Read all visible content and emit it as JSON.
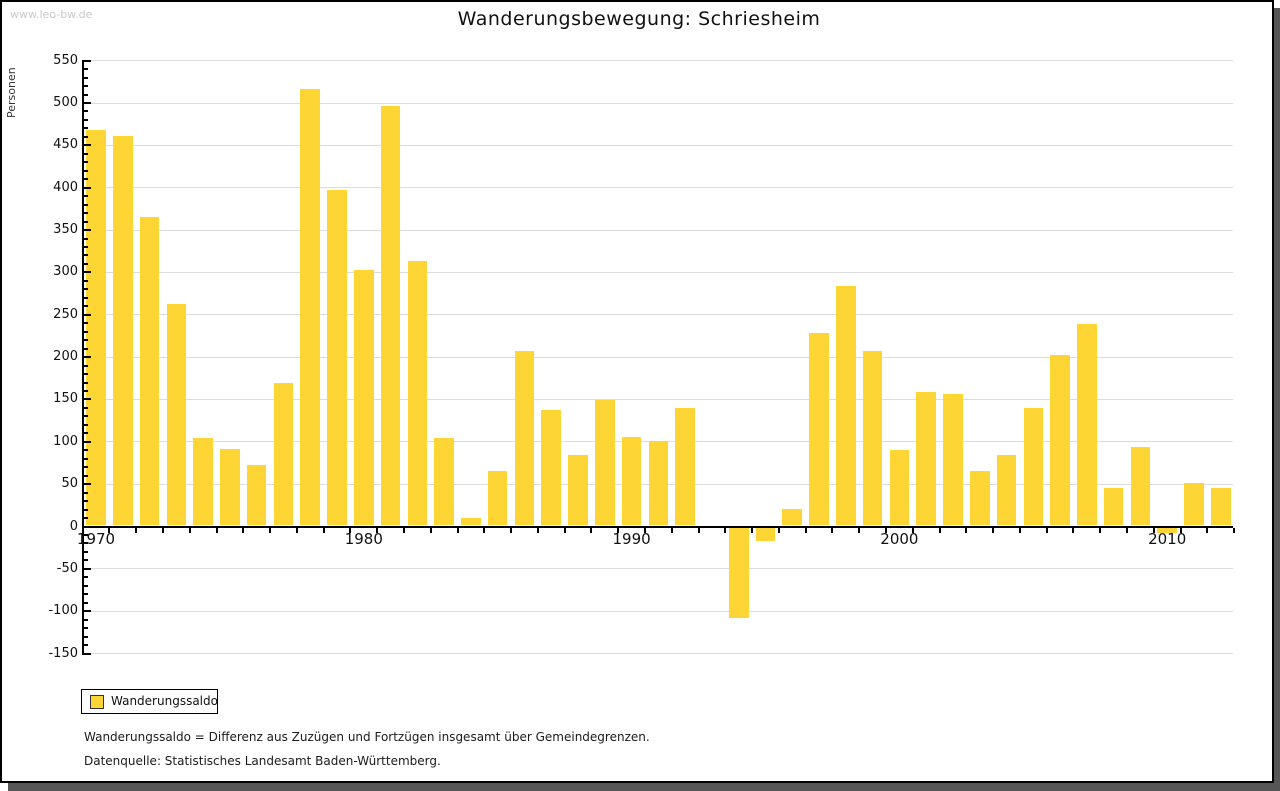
{
  "watermark": "www.leo-bw.de",
  "chart_data": {
    "type": "bar",
    "title": "Wanderungsbewegung: Schriesheim",
    "ylabel": "Personen",
    "ylim": [
      -150,
      550
    ],
    "ytick_step": 50,
    "ytick_minor_step": 10,
    "grid": true,
    "legend_position": "bottom-left",
    "bar_color": "#FDD535",
    "series_name": "Wanderungssaldo",
    "x": [
      1970,
      1971,
      1972,
      1973,
      1974,
      1975,
      1976,
      1977,
      1978,
      1979,
      1980,
      1981,
      1982,
      1983,
      1984,
      1985,
      1986,
      1987,
      1988,
      1989,
      1990,
      1991,
      1992,
      1993,
      1994,
      1995,
      1996,
      1997,
      1998,
      1999,
      2000,
      2001,
      2002,
      2003,
      2004,
      2005,
      2006,
      2007,
      2008,
      2009,
      2010,
      2011,
      2012
    ],
    "values": [
      468,
      461,
      365,
      263,
      104,
      92,
      73,
      170,
      517,
      397,
      303,
      497,
      313,
      105,
      10,
      66,
      207,
      138,
      84,
      149,
      106,
      101,
      140,
      0,
      -108,
      -17,
      21,
      229,
      284,
      207,
      90,
      159,
      156,
      66,
      84,
      140,
      203,
      239,
      45,
      94,
      -8,
      51,
      45
    ],
    "xtick_labels": [
      "1970",
      "1980",
      "1990",
      "2000",
      "2010"
    ]
  },
  "legend": {
    "label": "Wanderungssaldo",
    "swatch_color": "#FDD535"
  },
  "footnotes": {
    "definition": "Wanderungssaldo = Differenz aus Zuzügen und Fortzügen insgesamt über Gemeindegrenzen.",
    "source": "Datenquelle: Statistisches Landesamt Baden-Württemberg."
  },
  "colors": {
    "bar": "#FDD535",
    "grid": "#DCDCDC",
    "axis": "#000000",
    "watermark": "#C9C9C9",
    "frame_shadow": "#565656"
  }
}
